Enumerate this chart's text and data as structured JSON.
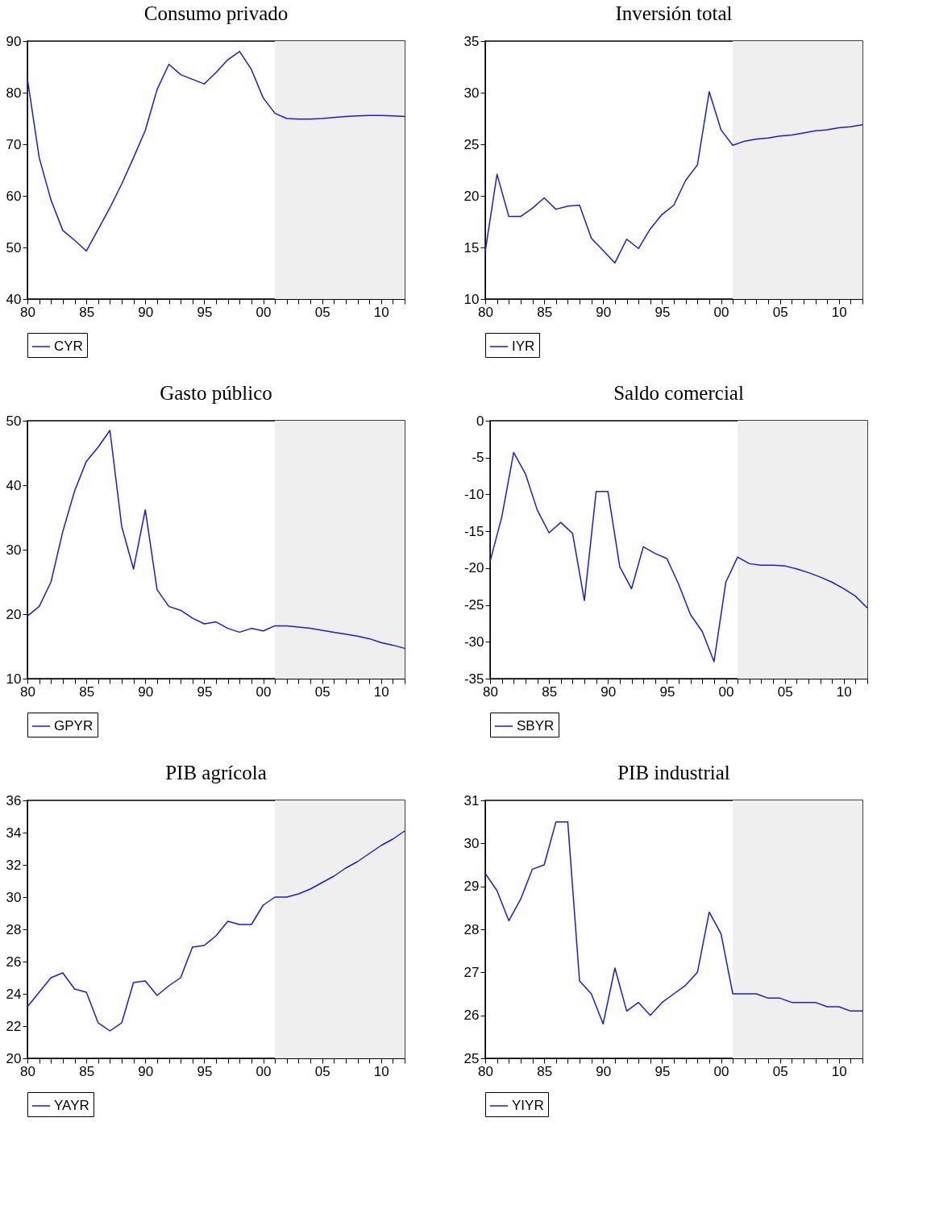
{
  "chart_data": [
    {
      "type": "line",
      "title": "Consumo privado",
      "x": [
        1980,
        1981,
        1982,
        1983,
        1984,
        1985,
        1986,
        1987,
        1988,
        1989,
        1990,
        1991,
        1992,
        1993,
        1994,
        1995,
        1996,
        1997,
        1998,
        1999,
        2000,
        2001,
        2002,
        2003,
        2004,
        2005,
        2006,
        2007,
        2008,
        2009,
        2010,
        2011,
        2012
      ],
      "xlim": [
        1980,
        2012
      ],
      "xticks": [
        {
          "value": 1980,
          "label": "80"
        },
        {
          "value": 1981,
          "label": null
        },
        {
          "value": 1982,
          "label": null
        },
        {
          "value": 1983,
          "label": null
        },
        {
          "value": 1984,
          "label": null
        },
        {
          "value": 1985,
          "label": "85"
        },
        {
          "value": 1986,
          "label": null
        },
        {
          "value": 1987,
          "label": null
        },
        {
          "value": 1988,
          "label": null
        },
        {
          "value": 1989,
          "label": null
        },
        {
          "value": 1990,
          "label": "90"
        },
        {
          "value": 1991,
          "label": null
        },
        {
          "value": 1992,
          "label": null
        },
        {
          "value": 1993,
          "label": null
        },
        {
          "value": 1994,
          "label": null
        },
        {
          "value": 1995,
          "label": "95"
        },
        {
          "value": 1996,
          "label": null
        },
        {
          "value": 1997,
          "label": null
        },
        {
          "value": 1998,
          "label": null
        },
        {
          "value": 1999,
          "label": null
        },
        {
          "value": 2000,
          "label": "00"
        },
        {
          "value": 2001,
          "label": null
        },
        {
          "value": 2002,
          "label": null
        },
        {
          "value": 2003,
          "label": null
        },
        {
          "value": 2004,
          "label": null
        },
        {
          "value": 2005,
          "label": "05"
        },
        {
          "value": 2006,
          "label": null
        },
        {
          "value": 2007,
          "label": null
        },
        {
          "value": 2008,
          "label": null
        },
        {
          "value": 2009,
          "label": null
        },
        {
          "value": 2010,
          "label": "10"
        },
        {
          "value": 2011,
          "label": null
        },
        {
          "value": 2012,
          "label": null
        }
      ],
      "ylim": [
        40,
        90
      ],
      "yticks": [
        40,
        50,
        60,
        70,
        80,
        90
      ],
      "legend": "bottom",
      "bands": [
        {
          "axis": "x",
          "from": 2001,
          "to": 2012,
          "color": "#efefef"
        }
      ],
      "series": [
        {
          "name": "CYR",
          "color": "#1a1ae6",
          "values": [
            82.7,
            67.4,
            59.2,
            53.3,
            51.4,
            49.3,
            53.5,
            57.7,
            62.3,
            67.4,
            72.7,
            80.6,
            85.5,
            83.5,
            82.6,
            81.7,
            83.9,
            86.4,
            88.0,
            84.5,
            79.0,
            76.0,
            75.0,
            74.9,
            74.9,
            75.0,
            75.2,
            75.4,
            75.5,
            75.6,
            75.6,
            75.5,
            75.4
          ]
        }
      ]
    },
    {
      "type": "line",
      "title": "Inversión total",
      "x": [
        1980,
        1981,
        1982,
        1983,
        1984,
        1985,
        1986,
        1987,
        1988,
        1989,
        1990,
        1991,
        1992,
        1993,
        1994,
        1995,
        1996,
        1997,
        1998,
        1999,
        2000,
        2001,
        2002,
        2003,
        2004,
        2005,
        2006,
        2007,
        2008,
        2009,
        2010,
        2011,
        2012
      ],
      "xlim": [
        1980,
        2012
      ],
      "xticks": [
        {
          "value": 1980,
          "label": "80"
        },
        {
          "value": 1981,
          "label": null
        },
        {
          "value": 1982,
          "label": null
        },
        {
          "value": 1983,
          "label": null
        },
        {
          "value": 1984,
          "label": null
        },
        {
          "value": 1985,
          "label": "85"
        },
        {
          "value": 1986,
          "label": null
        },
        {
          "value": 1987,
          "label": null
        },
        {
          "value": 1988,
          "label": null
        },
        {
          "value": 1989,
          "label": null
        },
        {
          "value": 1990,
          "label": "90"
        },
        {
          "value": 1991,
          "label": null
        },
        {
          "value": 1992,
          "label": null
        },
        {
          "value": 1993,
          "label": null
        },
        {
          "value": 1994,
          "label": null
        },
        {
          "value": 1995,
          "label": "95"
        },
        {
          "value": 1996,
          "label": null
        },
        {
          "value": 1997,
          "label": null
        },
        {
          "value": 1998,
          "label": null
        },
        {
          "value": 1999,
          "label": null
        },
        {
          "value": 2000,
          "label": "00"
        },
        {
          "value": 2001,
          "label": null
        },
        {
          "value": 2002,
          "label": null
        },
        {
          "value": 2003,
          "label": null
        },
        {
          "value": 2004,
          "label": null
        },
        {
          "value": 2005,
          "label": "05"
        },
        {
          "value": 2006,
          "label": null
        },
        {
          "value": 2007,
          "label": null
        },
        {
          "value": 2008,
          "label": null
        },
        {
          "value": 2009,
          "label": null
        },
        {
          "value": 2010,
          "label": "10"
        },
        {
          "value": 2011,
          "label": null
        },
        {
          "value": 2012,
          "label": null
        }
      ],
      "ylim": [
        10,
        35
      ],
      "yticks": [
        10,
        15,
        20,
        25,
        30,
        35
      ],
      "legend": "bottom",
      "bands": [
        {
          "axis": "x",
          "from": 2001,
          "to": 2012,
          "color": "#efefef"
        }
      ],
      "series": [
        {
          "name": "IYR",
          "color": "#1a1ae6",
          "values": [
            14.6,
            22.1,
            18.0,
            18.0,
            18.8,
            19.8,
            18.7,
            19.0,
            19.1,
            15.9,
            14.7,
            13.5,
            15.8,
            14.9,
            16.8,
            18.2,
            19.1,
            21.5,
            23.0,
            30.1,
            26.4,
            24.9,
            25.3,
            25.5,
            25.6,
            25.8,
            25.9,
            26.1,
            26.3,
            26.4,
            26.6,
            26.7,
            26.9
          ]
        }
      ]
    },
    {
      "type": "line",
      "title": "Gasto público",
      "x": [
        1980,
        1981,
        1982,
        1983,
        1984,
        1985,
        1986,
        1987,
        1988,
        1989,
        1990,
        1991,
        1992,
        1993,
        1994,
        1995,
        1996,
        1997,
        1998,
        1999,
        2000,
        2001,
        2002,
        2003,
        2004,
        2005,
        2006,
        2007,
        2008,
        2009,
        2010,
        2011,
        2012
      ],
      "xlim": [
        1980,
        2012
      ],
      "xticks": [
        {
          "value": 1980,
          "label": "80"
        },
        {
          "value": 1981,
          "label": null
        },
        {
          "value": 1982,
          "label": null
        },
        {
          "value": 1983,
          "label": null
        },
        {
          "value": 1984,
          "label": null
        },
        {
          "value": 1985,
          "label": "85"
        },
        {
          "value": 1986,
          "label": null
        },
        {
          "value": 1987,
          "label": null
        },
        {
          "value": 1988,
          "label": null
        },
        {
          "value": 1989,
          "label": null
        },
        {
          "value": 1990,
          "label": "90"
        },
        {
          "value": 1991,
          "label": null
        },
        {
          "value": 1992,
          "label": null
        },
        {
          "value": 1993,
          "label": null
        },
        {
          "value": 1994,
          "label": null
        },
        {
          "value": 1995,
          "label": "95"
        },
        {
          "value": 1996,
          "label": null
        },
        {
          "value": 1997,
          "label": null
        },
        {
          "value": 1998,
          "label": null
        },
        {
          "value": 1999,
          "label": null
        },
        {
          "value": 2000,
          "label": "00"
        },
        {
          "value": 2001,
          "label": null
        },
        {
          "value": 2002,
          "label": null
        },
        {
          "value": 2003,
          "label": null
        },
        {
          "value": 2004,
          "label": null
        },
        {
          "value": 2005,
          "label": "05"
        },
        {
          "value": 2006,
          "label": null
        },
        {
          "value": 2007,
          "label": null
        },
        {
          "value": 2008,
          "label": null
        },
        {
          "value": 2009,
          "label": null
        },
        {
          "value": 2010,
          "label": "10"
        },
        {
          "value": 2011,
          "label": null
        },
        {
          "value": 2012,
          "label": null
        }
      ],
      "ylim": [
        10,
        50
      ],
      "yticks": [
        10,
        20,
        30,
        40,
        50
      ],
      "legend": "bottom",
      "bands": [
        {
          "axis": "x",
          "from": 2001,
          "to": 2012,
          "color": "#efefef"
        }
      ],
      "series": [
        {
          "name": "GPYR",
          "color": "#1a1ae6",
          "values": [
            19.7,
            21.2,
            25.0,
            32.8,
            39.1,
            43.7,
            45.9,
            48.5,
            33.6,
            27.0,
            36.2,
            23.8,
            21.2,
            20.6,
            19.4,
            18.5,
            18.8,
            17.8,
            17.2,
            17.8,
            17.4,
            18.2,
            18.2,
            18.0,
            17.8,
            17.5,
            17.2,
            16.9,
            16.6,
            16.2,
            15.6,
            15.2,
            14.7
          ]
        }
      ]
    },
    {
      "type": "line",
      "title": "Saldo comercial",
      "x": [
        1980,
        1981,
        1982,
        1983,
        1984,
        1985,
        1986,
        1987,
        1988,
        1989,
        1990,
        1991,
        1992,
        1993,
        1994,
        1995,
        1996,
        1997,
        1998,
        1999,
        2000,
        2001,
        2002,
        2003,
        2004,
        2005,
        2006,
        2007,
        2008,
        2009,
        2010,
        2011,
        2012
      ],
      "xlim": [
        1980,
        2012
      ],
      "xticks": [
        {
          "value": 1980,
          "label": "80"
        },
        {
          "value": 1981,
          "label": null
        },
        {
          "value": 1982,
          "label": null
        },
        {
          "value": 1983,
          "label": null
        },
        {
          "value": 1984,
          "label": null
        },
        {
          "value": 1985,
          "label": "85"
        },
        {
          "value": 1986,
          "label": null
        },
        {
          "value": 1987,
          "label": null
        },
        {
          "value": 1988,
          "label": null
        },
        {
          "value": 1989,
          "label": null
        },
        {
          "value": 1990,
          "label": "90"
        },
        {
          "value": 1991,
          "label": null
        },
        {
          "value": 1992,
          "label": null
        },
        {
          "value": 1993,
          "label": null
        },
        {
          "value": 1994,
          "label": null
        },
        {
          "value": 1995,
          "label": "95"
        },
        {
          "value": 1996,
          "label": null
        },
        {
          "value": 1997,
          "label": null
        },
        {
          "value": 1998,
          "label": null
        },
        {
          "value": 1999,
          "label": null
        },
        {
          "value": 2000,
          "label": "00"
        },
        {
          "value": 2001,
          "label": null
        },
        {
          "value": 2002,
          "label": null
        },
        {
          "value": 2003,
          "label": null
        },
        {
          "value": 2004,
          "label": null
        },
        {
          "value": 2005,
          "label": "05"
        },
        {
          "value": 2006,
          "label": null
        },
        {
          "value": 2007,
          "label": null
        },
        {
          "value": 2008,
          "label": null
        },
        {
          "value": 2009,
          "label": null
        },
        {
          "value": 2010,
          "label": "10"
        },
        {
          "value": 2011,
          "label": null
        },
        {
          "value": 2012,
          "label": null
        }
      ],
      "ylim": [
        -35,
        0
      ],
      "yticks": [
        -35,
        -30,
        -25,
        -20,
        -15,
        -10,
        -5,
        0
      ],
      "legend": "bottom",
      "bands": [
        {
          "axis": "x",
          "from": 2001,
          "to": 2012,
          "color": "#efefef"
        }
      ],
      "series": [
        {
          "name": "SBYR",
          "color": "#1a1ae6",
          "values": [
            -19.1,
            -13.0,
            -4.3,
            -7.2,
            -12.1,
            -15.2,
            -13.8,
            -15.3,
            -24.4,
            -9.6,
            -9.6,
            -19.8,
            -22.8,
            -17.1,
            -18.0,
            -18.7,
            -22.2,
            -26.3,
            -28.6,
            -32.7,
            -21.9,
            -18.5,
            -19.4,
            -19.6,
            -19.6,
            -19.7,
            -20.1,
            -20.6,
            -21.2,
            -21.9,
            -22.8,
            -23.8,
            -25.4
          ]
        }
      ]
    },
    {
      "type": "line",
      "title": "PIB agrícola",
      "x": [
        1980,
        1981,
        1982,
        1983,
        1984,
        1985,
        1986,
        1987,
        1988,
        1989,
        1990,
        1991,
        1992,
        1993,
        1994,
        1995,
        1996,
        1997,
        1998,
        1999,
        2000,
        2001,
        2002,
        2003,
        2004,
        2005,
        2006,
        2007,
        2008,
        2009,
        2010,
        2011,
        2012
      ],
      "xlim": [
        1980,
        2012
      ],
      "xticks": [
        {
          "value": 1980,
          "label": "80"
        },
        {
          "value": 1981,
          "label": null
        },
        {
          "value": 1982,
          "label": null
        },
        {
          "value": 1983,
          "label": null
        },
        {
          "value": 1984,
          "label": null
        },
        {
          "value": 1985,
          "label": "85"
        },
        {
          "value": 1986,
          "label": null
        },
        {
          "value": 1987,
          "label": null
        },
        {
          "value": 1988,
          "label": null
        },
        {
          "value": 1989,
          "label": null
        },
        {
          "value": 1990,
          "label": "90"
        },
        {
          "value": 1991,
          "label": null
        },
        {
          "value": 1992,
          "label": null
        },
        {
          "value": 1993,
          "label": null
        },
        {
          "value": 1994,
          "label": null
        },
        {
          "value": 1995,
          "label": "95"
        },
        {
          "value": 1996,
          "label": null
        },
        {
          "value": 1997,
          "label": null
        },
        {
          "value": 1998,
          "label": null
        },
        {
          "value": 1999,
          "label": null
        },
        {
          "value": 2000,
          "label": "00"
        },
        {
          "value": 2001,
          "label": null
        },
        {
          "value": 2002,
          "label": null
        },
        {
          "value": 2003,
          "label": null
        },
        {
          "value": 2004,
          "label": null
        },
        {
          "value": 2005,
          "label": "05"
        },
        {
          "value": 2006,
          "label": null
        },
        {
          "value": 2007,
          "label": null
        },
        {
          "value": 2008,
          "label": null
        },
        {
          "value": 2009,
          "label": null
        },
        {
          "value": 2010,
          "label": "10"
        },
        {
          "value": 2011,
          "label": null
        },
        {
          "value": 2012,
          "label": null
        }
      ],
      "ylim": [
        20,
        36
      ],
      "yticks": [
        20,
        22,
        24,
        26,
        28,
        30,
        32,
        34,
        36
      ],
      "legend": "bottom",
      "bands": [
        {
          "axis": "x",
          "from": 2001,
          "to": 2012,
          "color": "#efefef"
        }
      ],
      "series": [
        {
          "name": "YAYR",
          "color": "#1a1ae6",
          "values": [
            23.2,
            24.1,
            25.0,
            25.3,
            24.3,
            24.1,
            22.2,
            21.7,
            22.2,
            24.7,
            24.8,
            23.9,
            24.5,
            25.0,
            26.9,
            27.0,
            27.6,
            28.5,
            28.3,
            28.3,
            29.5,
            30.0,
            30.0,
            30.2,
            30.5,
            30.9,
            31.3,
            31.8,
            32.2,
            32.7,
            33.2,
            33.6,
            34.1
          ]
        }
      ]
    },
    {
      "type": "line",
      "title": "PIB industrial",
      "x": [
        1980,
        1981,
        1982,
        1983,
        1984,
        1985,
        1986,
        1987,
        1988,
        1989,
        1990,
        1991,
        1992,
        1993,
        1994,
        1995,
        1996,
        1997,
        1998,
        1999,
        2000,
        2001,
        2002,
        2003,
        2004,
        2005,
        2006,
        2007,
        2008,
        2009,
        2010,
        2011,
        2012
      ],
      "xlim": [
        1980,
        2012
      ],
      "xticks": [
        {
          "value": 1980,
          "label": "80"
        },
        {
          "value": 1981,
          "label": null
        },
        {
          "value": 1982,
          "label": null
        },
        {
          "value": 1983,
          "label": null
        },
        {
          "value": 1984,
          "label": null
        },
        {
          "value": 1985,
          "label": "85"
        },
        {
          "value": 1986,
          "label": null
        },
        {
          "value": 1987,
          "label": null
        },
        {
          "value": 1988,
          "label": null
        },
        {
          "value": 1989,
          "label": null
        },
        {
          "value": 1990,
          "label": "90"
        },
        {
          "value": 1991,
          "label": null
        },
        {
          "value": 1992,
          "label": null
        },
        {
          "value": 1993,
          "label": null
        },
        {
          "value": 1994,
          "label": null
        },
        {
          "value": 1995,
          "label": "95"
        },
        {
          "value": 1996,
          "label": null
        },
        {
          "value": 1997,
          "label": null
        },
        {
          "value": 1998,
          "label": null
        },
        {
          "value": 1999,
          "label": null
        },
        {
          "value": 2000,
          "label": "00"
        },
        {
          "value": 2001,
          "label": null
        },
        {
          "value": 2002,
          "label": null
        },
        {
          "value": 2003,
          "label": null
        },
        {
          "value": 2004,
          "label": null
        },
        {
          "value": 2005,
          "label": "05"
        },
        {
          "value": 2006,
          "label": null
        },
        {
          "value": 2007,
          "label": null
        },
        {
          "value": 2008,
          "label": null
        },
        {
          "value": 2009,
          "label": null
        },
        {
          "value": 2010,
          "label": "10"
        },
        {
          "value": 2011,
          "label": null
        },
        {
          "value": 2012,
          "label": null
        }
      ],
      "ylim": [
        25,
        31
      ],
      "yticks": [
        25,
        26,
        27,
        28,
        29,
        30,
        31
      ],
      "legend": "bottom",
      "bands": [
        {
          "axis": "x",
          "from": 2001,
          "to": 2012,
          "color": "#efefef"
        }
      ],
      "series": [
        {
          "name": "YIYR",
          "color": "#1a1ae6",
          "values": [
            29.3,
            28.9,
            28.2,
            28.7,
            29.4,
            29.5,
            30.5,
            30.5,
            26.8,
            26.5,
            25.8,
            27.1,
            26.1,
            26.3,
            26.0,
            26.3,
            26.5,
            26.7,
            27.0,
            28.4,
            27.9,
            26.5,
            26.5,
            26.5,
            26.4,
            26.4,
            26.3,
            26.3,
            26.3,
            26.2,
            26.2,
            26.1,
            26.1
          ]
        }
      ]
    }
  ]
}
